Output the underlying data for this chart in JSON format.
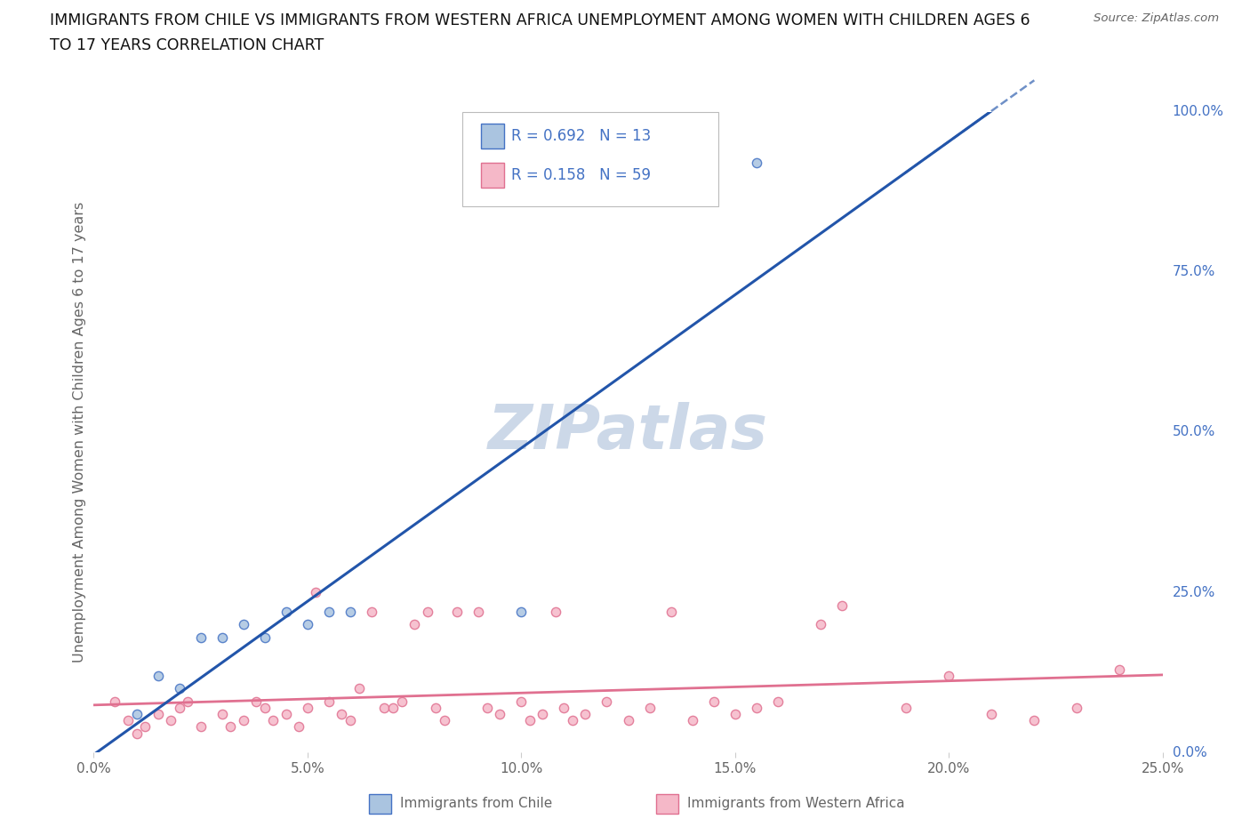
{
  "title_line1": "IMMIGRANTS FROM CHILE VS IMMIGRANTS FROM WESTERN AFRICA UNEMPLOYMENT AMONG WOMEN WITH CHILDREN AGES 6",
  "title_line2": "TO 17 YEARS CORRELATION CHART",
  "source": "Source: ZipAtlas.com",
  "ylabel": "Unemployment Among Women with Children Ages 6 to 17 years",
  "xlim": [
    0.0,
    0.25
  ],
  "ylim": [
    0.0,
    1.0
  ],
  "xticks": [
    0.0,
    0.05,
    0.1,
    0.15,
    0.2,
    0.25
  ],
  "xtick_labels": [
    "0.0%",
    "5.0%",
    "10.0%",
    "15.0%",
    "20.0%",
    "25.0%"
  ],
  "yticks_right": [
    0.0,
    0.25,
    0.5,
    0.75,
    1.0
  ],
  "ytick_labels_right": [
    "0.0%",
    "25.0%",
    "50.0%",
    "75.0%",
    "100.0%"
  ],
  "chile_fill_color": "#aac4e0",
  "chile_edge_color": "#4472c4",
  "chile_line_color": "#2255aa",
  "chile_R": 0.692,
  "chile_N": 13,
  "wa_fill_color": "#f5b8c8",
  "wa_edge_color": "#e07090",
  "wa_line_color": "#e07090",
  "wa_R": 0.158,
  "wa_N": 59,
  "legend_label_chile": "Immigrants from Chile",
  "legend_label_wa": "Immigrants from Western Africa",
  "stat_color": "#4472c4",
  "chile_x": [
    0.01,
    0.015,
    0.02,
    0.025,
    0.03,
    0.035,
    0.04,
    0.045,
    0.05,
    0.055,
    0.06,
    0.1,
    0.155
  ],
  "chile_y": [
    0.06,
    0.12,
    0.1,
    0.18,
    0.18,
    0.2,
    0.18,
    0.22,
    0.2,
    0.22,
    0.22,
    0.22,
    0.92
  ],
  "wa_x": [
    0.005,
    0.008,
    0.01,
    0.012,
    0.015,
    0.018,
    0.02,
    0.022,
    0.025,
    0.03,
    0.032,
    0.035,
    0.038,
    0.04,
    0.042,
    0.045,
    0.048,
    0.05,
    0.052,
    0.055,
    0.058,
    0.06,
    0.062,
    0.065,
    0.068,
    0.07,
    0.072,
    0.075,
    0.078,
    0.08,
    0.082,
    0.085,
    0.09,
    0.092,
    0.095,
    0.1,
    0.102,
    0.105,
    0.108,
    0.11,
    0.112,
    0.115,
    0.12,
    0.125,
    0.13,
    0.135,
    0.14,
    0.145,
    0.15,
    0.155,
    0.16,
    0.17,
    0.175,
    0.19,
    0.2,
    0.21,
    0.22,
    0.23,
    0.24
  ],
  "wa_y": [
    0.08,
    0.05,
    0.03,
    0.04,
    0.06,
    0.05,
    0.07,
    0.08,
    0.04,
    0.06,
    0.04,
    0.05,
    0.08,
    0.07,
    0.05,
    0.06,
    0.04,
    0.07,
    0.25,
    0.08,
    0.06,
    0.05,
    0.1,
    0.22,
    0.07,
    0.07,
    0.08,
    0.2,
    0.22,
    0.07,
    0.05,
    0.22,
    0.22,
    0.07,
    0.06,
    0.08,
    0.05,
    0.06,
    0.22,
    0.07,
    0.05,
    0.06,
    0.08,
    0.05,
    0.07,
    0.22,
    0.05,
    0.08,
    0.06,
    0.07,
    0.08,
    0.2,
    0.23,
    0.07,
    0.12,
    0.06,
    0.05,
    0.07,
    0.13
  ],
  "background_color": "#ffffff",
  "grid_color": "#cccccc",
  "title_fontsize": 12.5,
  "label_color": "#666666",
  "watermark_color": "#ccd8e8"
}
